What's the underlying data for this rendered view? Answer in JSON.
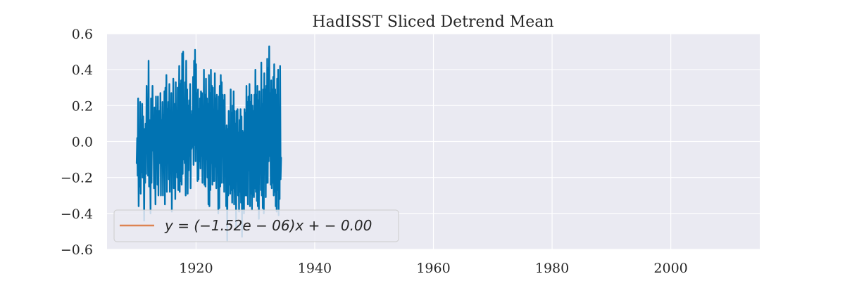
{
  "chart_data": {
    "type": "line",
    "title": "HadISST Sliced Detrend Mean",
    "xlabel": "",
    "ylabel": "",
    "xlim": [
      1905,
      2015
    ],
    "ylim": [
      -0.6,
      0.6
    ],
    "x_ticks": [
      1920,
      1940,
      1960,
      1980,
      2000
    ],
    "x_tick_labels": [
      "1920",
      "1940",
      "1960",
      "1980",
      "2000"
    ],
    "y_ticks": [
      -0.6,
      -0.4,
      -0.2,
      0.0,
      0.2,
      0.4,
      0.6
    ],
    "y_tick_labels": [
      "−0.6",
      "−0.4",
      "−0.2",
      "0.0",
      "0.2",
      "0.4",
      "0.6"
    ],
    "grid": true,
    "background_color": "#eaeaf2",
    "grid_color": "#ffffff",
    "legend": {
      "placement": "lower-left",
      "entries": [
        {
          "label": "y = (−1.52e − 06)x + − 0.00",
          "color": "#dd8452"
        }
      ]
    },
    "series": [
      {
        "name": "",
        "color": "#0173b2",
        "x_start": 1910.0,
        "x_step_years": 0.0833333,
        "values": [
          -0.12,
          0.02,
          -0.19,
          0.24,
          -0.36,
          -0.05,
          -0.25,
          0.22,
          -0.29,
          0.12,
          -0.17,
          0.21,
          -0.2,
          0.14,
          -0.05,
          -0.44,
          0.07,
          -0.23,
          0.1,
          -0.18,
          0.31,
          -0.05,
          0.18,
          -0.19,
          0.45,
          -0.25,
          0.12,
          -0.04,
          -0.4,
          0.24,
          -0.23,
          0.08,
          0.31,
          -0.05,
          0.05,
          -0.26,
          0.19,
          -0.03,
          -0.35,
          0.25,
          -0.06,
          0.17,
          -0.24,
          0.25,
          -0.3,
          0.05,
          0.17,
          -0.12,
          0.27,
          -0.3,
          0.12,
          -0.11,
          0.22,
          -0.3,
          0.15,
          -0.05,
          0.28,
          -0.35,
          0.3,
          -0.08,
          0.37,
          -0.28,
          0.18,
          -0.02,
          0.22,
          -0.21,
          0.32,
          -0.28,
          0.15,
          -0.03,
          0.27,
          -0.39,
          0.16,
          -0.1,
          0.35,
          -0.26,
          0.09,
          0.21,
          -0.32,
          0.33,
          -0.17,
          0.15,
          -0.2,
          0.3,
          -0.27,
          0.1,
          0.42,
          -0.28,
          0.32,
          -0.22,
          0.34,
          -0.24,
          0.49,
          -0.18,
          0.5,
          -0.1,
          0.22,
          -0.12,
          0.33,
          -0.3,
          0.45,
          -0.02,
          0.29,
          -0.29,
          0.2,
          -0.16,
          0.23,
          -0.08,
          0.32,
          -0.26,
          0.15,
          -0.04,
          0.17,
          -0.03,
          0.36,
          -0.13,
          0.45,
          -0.02,
          0.51,
          -0.11,
          0.43,
          -0.04,
          0.27,
          -0.22,
          0.29,
          -0.21,
          0.18,
          -0.11,
          0.24,
          -0.15,
          0.28,
          -0.08,
          0.27,
          -0.23,
          0.15,
          -0.07,
          0.4,
          -0.24,
          0.26,
          -0.25,
          0.35,
          -0.1,
          0.24,
          -0.2,
          0.21,
          -0.35,
          0.37,
          -0.36,
          0.27,
          -0.27,
          0.4,
          -0.12,
          0.31,
          -0.24,
          0.3,
          -0.22,
          0.16,
          -0.22,
          0.38,
          -0.14,
          0.24,
          -0.26,
          0.26,
          -0.08,
          0.17,
          -0.4,
          0.25,
          -0.37,
          0.31,
          -0.25,
          0.37,
          -0.23,
          0.33,
          -0.05,
          0.26,
          -0.23,
          0.23,
          -0.28,
          0.26,
          -0.15,
          0.06,
          -0.36,
          0.09,
          -0.55,
          0.07,
          -0.3,
          0.17,
          -0.24,
          0.08,
          -0.29,
          0.29,
          -0.27,
          0.16,
          -0.34,
          0.2,
          -0.26,
          0.28,
          -0.35,
          0.17,
          -0.28,
          0.1,
          -0.48,
          0.17,
          -0.21,
          0.18,
          -0.3,
          0.05,
          -0.39,
          0.12,
          -0.28,
          0.18,
          -0.34,
          0.14,
          -0.53,
          0.06,
          -0.37,
          0.05,
          -0.4,
          0.18,
          -0.3,
          0.16,
          -0.3,
          0.31,
          -0.3,
          0.22,
          -0.35,
          0.25,
          -0.16,
          0.32,
          -0.36,
          0.22,
          -0.29,
          0.26,
          -0.38,
          0.2,
          -0.3,
          0.17,
          -0.31,
          0.26,
          -0.26,
          0.4,
          -0.28,
          0.26,
          -0.33,
          0.31,
          -0.36,
          0.23,
          -0.43,
          0.28,
          -0.16,
          0.16,
          -0.27,
          0.44,
          -0.3,
          0.21,
          -0.37,
          0.29,
          -0.4,
          0.38,
          -0.12,
          0.29,
          -0.31,
          0.31,
          -0.23,
          0.46,
          -0.23,
          0.41,
          -0.11,
          0.53,
          -0.08,
          0.27,
          -0.24,
          0.34,
          -0.26,
          0.29,
          -0.23,
          0.36,
          -0.3,
          0.43,
          -0.28,
          0.29,
          -0.36,
          0.26,
          -0.39,
          0.35,
          -0.27,
          0.4,
          -0.41,
          0.18,
          -0.32,
          0.42,
          -0.21,
          -0.09
        ]
      }
    ]
  }
}
